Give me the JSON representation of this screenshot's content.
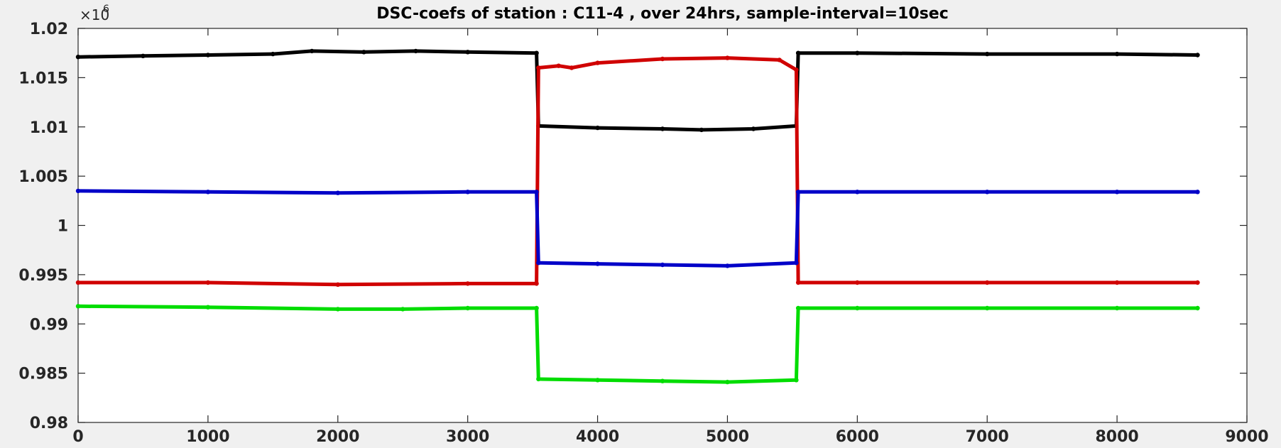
{
  "chart_data": {
    "type": "line",
    "title": "DSC-coefs of station : C11-4 , over 24hrs, sample-interval=10sec",
    "xlabel": "",
    "ylabel": "",
    "y_scale_prefix": "×10",
    "y_scale_exponent": "6",
    "xlim": [
      0,
      9000
    ],
    "ylim": [
      0.98,
      1.02
    ],
    "x_ticks": [
      0,
      1000,
      2000,
      3000,
      4000,
      5000,
      6000,
      7000,
      8000,
      9000
    ],
    "x_tick_labels": [
      "0",
      "1000",
      "2000",
      "3000",
      "4000",
      "5000",
      "6000",
      "7000",
      "8000",
      "9000"
    ],
    "y_ticks": [
      0.98,
      0.985,
      0.99,
      0.995,
      1.0,
      1.005,
      1.01,
      1.015,
      1.02
    ],
    "y_tick_labels": [
      "0.98",
      "0.985",
      "0.99",
      "0.995",
      "1",
      "1.005",
      "1.01",
      "1.015",
      "1.02"
    ],
    "grid": false,
    "legend": "none",
    "series": [
      {
        "color": "#000000",
        "x": [
          0,
          500,
          1000,
          1500,
          1800,
          2200,
          2600,
          3000,
          3530,
          3545,
          4000,
          4500,
          4800,
          5200,
          5530,
          5545,
          6000,
          7000,
          8000,
          8620
        ],
        "y": [
          1.0171,
          1.0172,
          1.0173,
          1.0174,
          1.0177,
          1.0176,
          1.0177,
          1.0176,
          1.0175,
          1.0101,
          1.0099,
          1.0098,
          1.0097,
          1.0098,
          1.0101,
          1.0175,
          1.0175,
          1.0174,
          1.0174,
          1.0173
        ]
      },
      {
        "color": "#d00000",
        "x": [
          0,
          1000,
          2000,
          3000,
          3530,
          3545,
          3700,
          3800,
          4000,
          4500,
          5000,
          5400,
          5530,
          5545,
          6000,
          7000,
          8000,
          8620
        ],
        "y": [
          0.9942,
          0.9942,
          0.994,
          0.9941,
          0.9941,
          1.016,
          1.0162,
          1.016,
          1.0165,
          1.0169,
          1.017,
          1.0168,
          1.0158,
          0.9942,
          0.9942,
          0.9942,
          0.9942,
          0.9942
        ]
      },
      {
        "color": "#0000c8",
        "x": [
          0,
          1000,
          2000,
          3000,
          3530,
          3545,
          4000,
          4500,
          5000,
          5530,
          5545,
          6000,
          7000,
          8000,
          8620
        ],
        "y": [
          1.0035,
          1.0034,
          1.0033,
          1.0034,
          1.0034,
          0.9962,
          0.9961,
          0.996,
          0.9959,
          0.9962,
          1.0034,
          1.0034,
          1.0034,
          1.0034,
          1.0034
        ]
      },
      {
        "color": "#00dd00",
        "x": [
          0,
          1000,
          2000,
          2500,
          3000,
          3530,
          3545,
          4000,
          4500,
          5000,
          5530,
          5545,
          6000,
          7000,
          8000,
          8620
        ],
        "y": [
          0.9918,
          0.9917,
          0.9915,
          0.9915,
          0.9916,
          0.9916,
          0.9844,
          0.9843,
          0.9842,
          0.9841,
          0.9843,
          0.9916,
          0.9916,
          0.9916,
          0.9916,
          0.9916
        ]
      }
    ]
  }
}
